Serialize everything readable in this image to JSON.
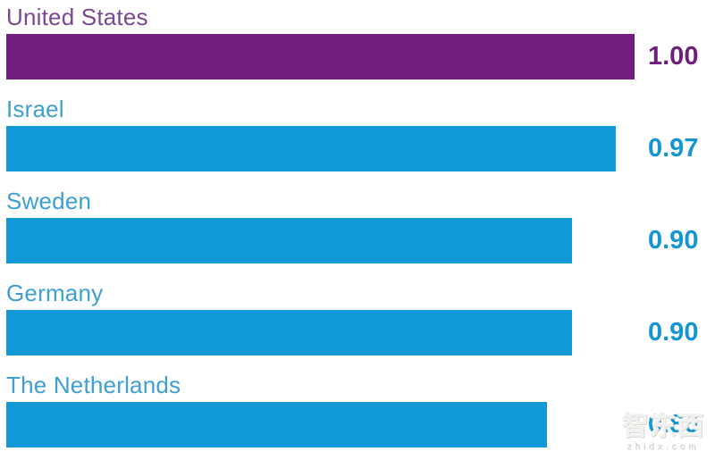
{
  "chart_data": {
    "type": "bar",
    "orientation": "horizontal",
    "title": "",
    "categories": [
      "United States",
      "Israel",
      "Sweden",
      "Germany",
      "The Netherlands"
    ],
    "values": [
      1.0,
      0.97,
      0.9,
      0.9,
      0.86
    ],
    "value_labels": [
      "1.00",
      "0.97",
      "0.90",
      "0.90",
      "0.86"
    ],
    "xlim": [
      0,
      1
    ],
    "grid": false,
    "legend": false,
    "bar_colors": [
      "#711e7e",
      "#1099d6",
      "#1099d6",
      "#1099d6",
      "#1099d6"
    ],
    "category_label_colors": [
      "#7a4792",
      "#3e9fd2",
      "#3e9fd2",
      "#3e9fd2",
      "#3e9fd2"
    ],
    "value_label_colors": [
      "#6d1f7c",
      "#1596d4",
      "#1596d4",
      "#1596d4",
      "#1596d4"
    ]
  },
  "watermark": {
    "logo_text": "智东西",
    "site_text": "zhidx.com"
  },
  "colors": {
    "background": "#ffffff",
    "accent_purple": "#711e7e",
    "accent_blue": "#1099d6"
  }
}
